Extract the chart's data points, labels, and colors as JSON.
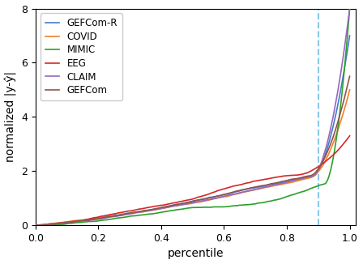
{
  "title": "",
  "xlabel": "percentile",
  "ylabel": "normalized |y-ŷ|",
  "xlim": [
    0.0,
    1.02
  ],
  "ylim": [
    0,
    8
  ],
  "yticks": [
    0,
    2,
    4,
    6,
    8
  ],
  "xticks": [
    0.0,
    0.2,
    0.4,
    0.6,
    0.8,
    1.0
  ],
  "vline_x": 0.9,
  "vline_color": "#8ac8e8",
  "vline_style": "--",
  "datasets": [
    {
      "label": "GEFCom-R",
      "color": "#4878cf"
    },
    {
      "label": "COVID",
      "color": "#f48024"
    },
    {
      "label": "MIMIC",
      "color": "#2ca02c"
    },
    {
      "label": "EEG",
      "color": "#d62728"
    },
    {
      "label": "CLAIM",
      "color": "#9467bd"
    },
    {
      "label": "GEFCom",
      "color": "#8c564b"
    }
  ],
  "figsize": [
    4.48,
    3.26
  ],
  "dpi": 100
}
